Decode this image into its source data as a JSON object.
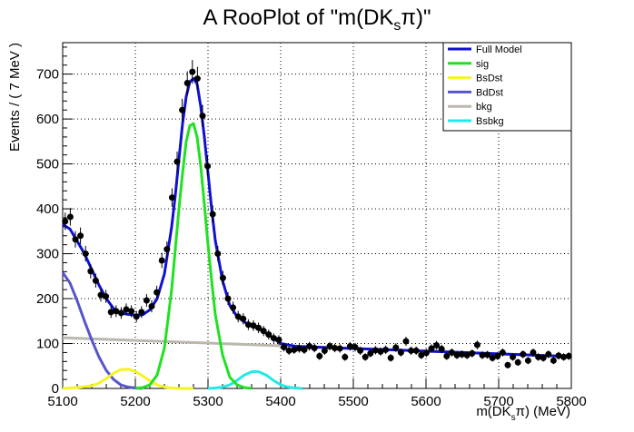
{
  "chart_data": {
    "type": "line",
    "title": "A RooPlot of \"m(DK_s π)\"",
    "title_parts": {
      "prefix": "A RooPlot of \"m(DK",
      "sub": "s",
      "suffix": "π)\""
    },
    "xlabel": "m(DK_s π) (MeV)",
    "xlabel_parts": {
      "prefix": "m(DK",
      "sub": "s",
      "suffix": "π) (MeV)"
    },
    "ylabel": "Events / ( 7 MeV )",
    "xlim": [
      5100,
      5800
    ],
    "ylim": [
      0,
      770
    ],
    "xticks": [
      5100,
      5200,
      5300,
      5400,
      5500,
      5600,
      5700,
      5800
    ],
    "yticks": [
      0,
      100,
      200,
      300,
      400,
      500,
      600,
      700
    ],
    "grid": true,
    "legend_position": "top-right",
    "legend": [
      {
        "name": "Full Model",
        "color": "#1010d0"
      },
      {
        "name": "sig",
        "color": "#22e022"
      },
      {
        "name": "BsDst",
        "color": "#f5f522"
      },
      {
        "name": "BdDst",
        "color": "#5555cc"
      },
      {
        "name": "bkg",
        "color": "#bbb8ae"
      },
      {
        "name": "Bsbkg",
        "color": "#22e8e8"
      }
    ],
    "points": {
      "name": "data",
      "x": [
        5103.5,
        5110.5,
        5117.5,
        5124.5,
        5131.5,
        5138.5,
        5145.5,
        5152.5,
        5159.5,
        5166.5,
        5173.5,
        5180.5,
        5187.5,
        5194.5,
        5201.5,
        5208.5,
        5215.5,
        5222.5,
        5229.5,
        5236.5,
        5243.5,
        5250.5,
        5257.5,
        5264.5,
        5271.5,
        5278.5,
        5285.5,
        5292.5,
        5299.5,
        5306.5,
        5313.5,
        5320.5,
        5327.5,
        5334.5,
        5341.5,
        5348.5,
        5355.5,
        5362.5,
        5369.5,
        5376.5,
        5383.5,
        5390.5,
        5397.5,
        5404.5,
        5411.5,
        5418.5,
        5425.5,
        5432.5,
        5439.5,
        5446.5,
        5453.5,
        5460.5,
        5467.5,
        5474.5,
        5481.5,
        5488.5,
        5495.5,
        5502.5,
        5509.5,
        5516.5,
        5523.5,
        5530.5,
        5537.5,
        5544.5,
        5551.5,
        5558.5,
        5565.5,
        5572.5,
        5579.5,
        5586.5,
        5593.5,
        5600.5,
        5607.5,
        5614.5,
        5621.5,
        5628.5,
        5635.5,
        5642.5,
        5649.5,
        5656.5,
        5663.5,
        5670.5,
        5677.5,
        5684.5,
        5691.5,
        5698.5,
        5705.5,
        5712.5,
        5719.5,
        5726.5,
        5733.5,
        5740.5,
        5747.5,
        5754.5,
        5761.5,
        5768.5,
        5775.5,
        5782.5,
        5789.5,
        5796.5
      ],
      "y": [
        372,
        382,
        332,
        340,
        300,
        261,
        240,
        208,
        205,
        170,
        172,
        168,
        176,
        172,
        160,
        170,
        196,
        183,
        214,
        285,
        310,
        425,
        505,
        620,
        680,
        705,
        690,
        607,
        495,
        388,
        300,
        246,
        200,
        180,
        160,
        155,
        142,
        140,
        135,
        128,
        120,
        112,
        108,
        92,
        84,
        86,
        89,
        86,
        94,
        90,
        72,
        84,
        94,
        90,
        89,
        70,
        94,
        92,
        84,
        70,
        78,
        85,
        82,
        86,
        68,
        91,
        80,
        105,
        84,
        84,
        74,
        79,
        89,
        96,
        88,
        72,
        80,
        74,
        76,
        74,
        78,
        97,
        74,
        75,
        68,
        72,
        80,
        52,
        70,
        58,
        76,
        62,
        80,
        70,
        68,
        76,
        62,
        73,
        70,
        72
      ]
    },
    "series": [
      {
        "name": "Full Model",
        "x": [
          5100,
          5110,
          5120,
          5130,
          5140,
          5150,
          5160,
          5170,
          5180,
          5190,
          5200,
          5210,
          5220,
          5230,
          5240,
          5250,
          5255,
          5260,
          5265,
          5270,
          5275,
          5280,
          5285,
          5290,
          5295,
          5300,
          5305,
          5310,
          5320,
          5330,
          5340,
          5350,
          5360,
          5370,
          5380,
          5390,
          5400,
          5420,
          5450,
          5500,
          5550,
          5600,
          5650,
          5700,
          5750,
          5800
        ],
        "values": [
          365,
          355,
          328,
          300,
          265,
          230,
          200,
          178,
          168,
          165,
          163,
          164,
          175,
          200,
          255,
          360,
          430,
          510,
          590,
          650,
          683,
          690,
          678,
          628,
          560,
          480,
          400,
          330,
          240,
          185,
          160,
          148,
          140,
          132,
          123,
          112,
          100,
          94,
          92,
          89,
          86,
          83,
          80,
          77,
          74,
          71
        ]
      },
      {
        "name": "sig",
        "x": [
          5200,
          5210,
          5220,
          5230,
          5240,
          5250,
          5255,
          5260,
          5265,
          5270,
          5275,
          5280,
          5285,
          5290,
          5295,
          5300,
          5305,
          5310,
          5320,
          5330,
          5340,
          5350,
          5360
        ],
        "values": [
          0,
          2,
          8,
          30,
          90,
          220,
          310,
          400,
          480,
          550,
          585,
          590,
          560,
          495,
          410,
          320,
          240,
          165,
          75,
          25,
          8,
          2,
          0
        ]
      },
      {
        "name": "BsDst",
        "x": [
          5100,
          5120,
          5140,
          5150,
          5160,
          5170,
          5180,
          5190,
          5200,
          5210,
          5220,
          5230,
          5240,
          5250,
          5260,
          5280
        ],
        "values": [
          0,
          2,
          6,
          12,
          22,
          34,
          42,
          43,
          38,
          28,
          17,
          8,
          3,
          1,
          0,
          0
        ]
      },
      {
        "name": "BdDst",
        "x": [
          5100,
          5110,
          5120,
          5130,
          5140,
          5150,
          5160,
          5170,
          5180,
          5190,
          5200,
          5210
        ],
        "values": [
          258,
          235,
          195,
          150,
          108,
          70,
          40,
          20,
          8,
          3,
          1,
          0
        ]
      },
      {
        "name": "bkg",
        "x": [
          5100,
          5200,
          5300,
          5400,
          5500,
          5600,
          5700,
          5800
        ],
        "values": [
          113,
          107,
          101,
          95,
          89,
          83,
          77,
          71
        ]
      },
      {
        "name": "Bsbkg",
        "x": [
          5300,
          5310,
          5320,
          5330,
          5340,
          5350,
          5360,
          5365,
          5370,
          5380,
          5390,
          5400,
          5410,
          5420,
          5430
        ],
        "values": [
          0,
          1,
          3,
          8,
          18,
          30,
          37,
          38,
          37,
          30,
          18,
          8,
          3,
          1,
          0
        ]
      }
    ]
  }
}
